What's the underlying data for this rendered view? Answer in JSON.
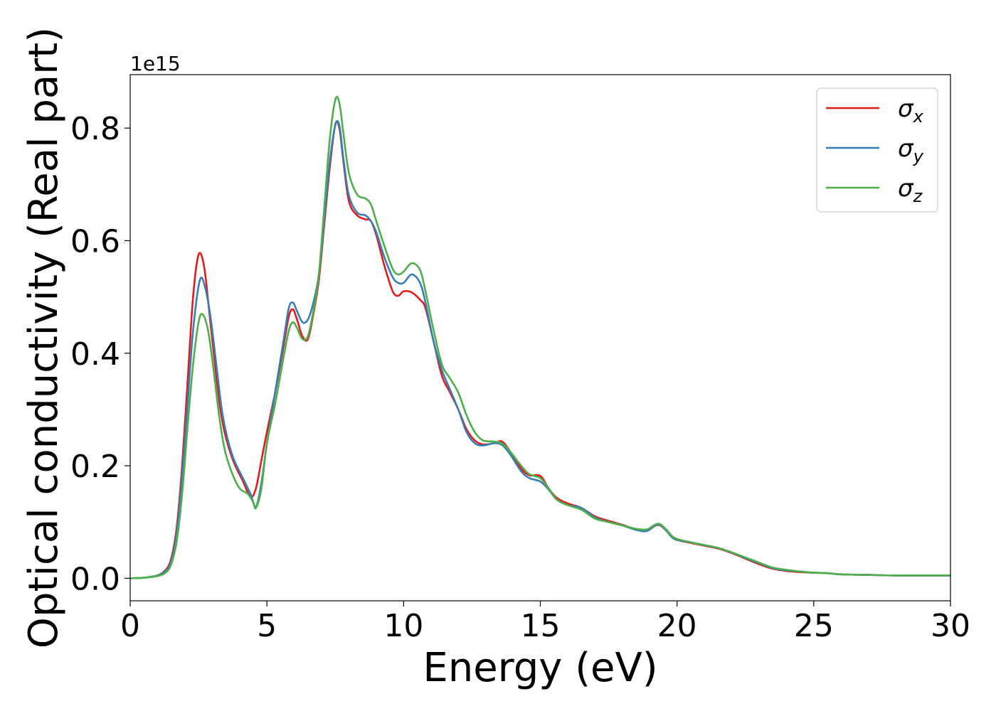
{
  "chart_data": {
    "type": "line",
    "title": "",
    "xlabel": "Energy (eV)",
    "ylabel": "Optical conductivity (Real part)",
    "y_offset_label": "1e15",
    "xlim": [
      0,
      30
    ],
    "ylim": [
      -0.04,
      0.895
    ],
    "xticks": [
      0,
      5,
      10,
      15,
      20,
      25,
      30
    ],
    "xtick_labels": [
      "0",
      "5",
      "10",
      "15",
      "20",
      "25",
      "30"
    ],
    "yticks": [
      0.0,
      0.2,
      0.4,
      0.6,
      0.8
    ],
    "ytick_labels": [
      "0.0",
      "0.2",
      "0.4",
      "0.6",
      "0.8"
    ],
    "grid": false,
    "legend_position": "top-right",
    "series": [
      {
        "name": "σx",
        "symbol": "σ",
        "subscript": "x",
        "color": "#e41a1c",
        "points": [
          [
            0,
            0
          ],
          [
            0.5,
            0.001
          ],
          [
            1.0,
            0.005
          ],
          [
            1.3,
            0.015
          ],
          [
            1.5,
            0.035
          ],
          [
            1.7,
            0.09
          ],
          [
            1.9,
            0.2
          ],
          [
            2.1,
            0.35
          ],
          [
            2.3,
            0.5
          ],
          [
            2.5,
            0.575
          ],
          [
            2.7,
            0.555
          ],
          [
            2.9,
            0.47
          ],
          [
            3.1,
            0.38
          ],
          [
            3.3,
            0.3
          ],
          [
            3.5,
            0.25
          ],
          [
            3.8,
            0.205
          ],
          [
            4.1,
            0.175
          ],
          [
            4.4,
            0.145
          ],
          [
            4.6,
            0.16
          ],
          [
            4.8,
            0.21
          ],
          [
            5.0,
            0.26
          ],
          [
            5.3,
            0.33
          ],
          [
            5.6,
            0.41
          ],
          [
            5.8,
            0.465
          ],
          [
            5.95,
            0.478
          ],
          [
            6.1,
            0.46
          ],
          [
            6.3,
            0.43
          ],
          [
            6.5,
            0.425
          ],
          [
            6.7,
            0.47
          ],
          [
            6.9,
            0.53
          ],
          [
            7.1,
            0.63
          ],
          [
            7.3,
            0.73
          ],
          [
            7.5,
            0.806
          ],
          [
            7.65,
            0.8
          ],
          [
            7.8,
            0.74
          ],
          [
            8.0,
            0.67
          ],
          [
            8.3,
            0.645
          ],
          [
            8.6,
            0.638
          ],
          [
            8.8,
            0.635
          ],
          [
            9.0,
            0.61
          ],
          [
            9.3,
            0.555
          ],
          [
            9.6,
            0.51
          ],
          [
            9.8,
            0.502
          ],
          [
            10.0,
            0.51
          ],
          [
            10.3,
            0.508
          ],
          [
            10.6,
            0.495
          ],
          [
            10.8,
            0.48
          ],
          [
            11.1,
            0.42
          ],
          [
            11.4,
            0.36
          ],
          [
            11.7,
            0.33
          ],
          [
            12.0,
            0.3
          ],
          [
            12.3,
            0.265
          ],
          [
            12.6,
            0.245
          ],
          [
            12.9,
            0.238
          ],
          [
            13.3,
            0.24
          ],
          [
            13.6,
            0.243
          ],
          [
            13.9,
            0.225
          ],
          [
            14.3,
            0.195
          ],
          [
            14.6,
            0.183
          ],
          [
            15.0,
            0.182
          ],
          [
            15.3,
            0.16
          ],
          [
            15.6,
            0.143
          ],
          [
            16.0,
            0.133
          ],
          [
            16.5,
            0.125
          ],
          [
            17.0,
            0.11
          ],
          [
            17.5,
            0.102
          ],
          [
            18.0,
            0.095
          ],
          [
            18.5,
            0.087
          ],
          [
            18.9,
            0.085
          ],
          [
            19.3,
            0.095
          ],
          [
            19.6,
            0.085
          ],
          [
            19.9,
            0.07
          ],
          [
            20.5,
            0.063
          ],
          [
            21.0,
            0.058
          ],
          [
            21.5,
            0.053
          ],
          [
            22.0,
            0.045
          ],
          [
            22.5,
            0.035
          ],
          [
            23.0,
            0.025
          ],
          [
            23.5,
            0.017
          ],
          [
            24.0,
            0.013
          ],
          [
            24.5,
            0.011
          ],
          [
            25.0,
            0.01
          ],
          [
            25.5,
            0.009
          ],
          [
            26.0,
            0.007
          ],
          [
            27.0,
            0.006
          ],
          [
            28.0,
            0.005
          ],
          [
            29.0,
            0.005
          ],
          [
            30.0,
            0.005
          ]
        ]
      },
      {
        "name": "σy",
        "symbol": "σ",
        "subscript": "y",
        "color": "#377eb8",
        "points": [
          [
            0,
            0
          ],
          [
            0.5,
            0.001
          ],
          [
            1.0,
            0.005
          ],
          [
            1.3,
            0.013
          ],
          [
            1.5,
            0.03
          ],
          [
            1.7,
            0.08
          ],
          [
            1.9,
            0.18
          ],
          [
            2.1,
            0.31
          ],
          [
            2.3,
            0.44
          ],
          [
            2.55,
            0.53
          ],
          [
            2.75,
            0.515
          ],
          [
            2.95,
            0.46
          ],
          [
            3.15,
            0.38
          ],
          [
            3.35,
            0.3
          ],
          [
            3.55,
            0.25
          ],
          [
            3.8,
            0.21
          ],
          [
            4.1,
            0.18
          ],
          [
            4.4,
            0.15
          ],
          [
            4.6,
            0.127
          ],
          [
            4.8,
            0.17
          ],
          [
            5.0,
            0.24
          ],
          [
            5.3,
            0.33
          ],
          [
            5.6,
            0.42
          ],
          [
            5.8,
            0.48
          ],
          [
            5.95,
            0.49
          ],
          [
            6.1,
            0.475
          ],
          [
            6.3,
            0.455
          ],
          [
            6.5,
            0.46
          ],
          [
            6.7,
            0.49
          ],
          [
            6.9,
            0.54
          ],
          [
            7.1,
            0.64
          ],
          [
            7.3,
            0.74
          ],
          [
            7.5,
            0.805
          ],
          [
            7.65,
            0.805
          ],
          [
            7.8,
            0.745
          ],
          [
            8.0,
            0.68
          ],
          [
            8.3,
            0.65
          ],
          [
            8.6,
            0.645
          ],
          [
            8.8,
            0.635
          ],
          [
            9.0,
            0.615
          ],
          [
            9.3,
            0.57
          ],
          [
            9.6,
            0.535
          ],
          [
            9.8,
            0.525
          ],
          [
            10.0,
            0.525
          ],
          [
            10.3,
            0.54
          ],
          [
            10.6,
            0.525
          ],
          [
            10.8,
            0.49
          ],
          [
            11.1,
            0.42
          ],
          [
            11.4,
            0.37
          ],
          [
            11.7,
            0.335
          ],
          [
            12.0,
            0.3
          ],
          [
            12.3,
            0.26
          ],
          [
            12.6,
            0.24
          ],
          [
            12.9,
            0.236
          ],
          [
            13.3,
            0.24
          ],
          [
            13.6,
            0.237
          ],
          [
            13.9,
            0.22
          ],
          [
            14.3,
            0.19
          ],
          [
            14.6,
            0.178
          ],
          [
            15.0,
            0.172
          ],
          [
            15.3,
            0.158
          ],
          [
            15.6,
            0.14
          ],
          [
            16.0,
            0.13
          ],
          [
            16.5,
            0.125
          ],
          [
            17.0,
            0.108
          ],
          [
            17.5,
            0.1
          ],
          [
            18.0,
            0.094
          ],
          [
            18.5,
            0.086
          ],
          [
            18.9,
            0.084
          ],
          [
            19.3,
            0.096
          ],
          [
            19.6,
            0.085
          ],
          [
            19.9,
            0.07
          ],
          [
            20.5,
            0.064
          ],
          [
            21.0,
            0.059
          ],
          [
            21.5,
            0.054
          ],
          [
            22.0,
            0.046
          ],
          [
            22.5,
            0.036
          ],
          [
            23.0,
            0.027
          ],
          [
            23.5,
            0.018
          ],
          [
            24.0,
            0.014
          ],
          [
            24.5,
            0.012
          ],
          [
            25.0,
            0.01
          ],
          [
            25.5,
            0.009
          ],
          [
            26.0,
            0.007
          ],
          [
            27.0,
            0.006
          ],
          [
            28.0,
            0.005
          ],
          [
            29.0,
            0.005
          ],
          [
            30.0,
            0.005
          ]
        ]
      },
      {
        "name": "σz",
        "symbol": "σ",
        "subscript": "z",
        "color": "#4daf4a",
        "points": [
          [
            0,
            0
          ],
          [
            0.5,
            0.001
          ],
          [
            1.0,
            0.004
          ],
          [
            1.3,
            0.01
          ],
          [
            1.5,
            0.025
          ],
          [
            1.7,
            0.065
          ],
          [
            1.9,
            0.15
          ],
          [
            2.1,
            0.27
          ],
          [
            2.3,
            0.38
          ],
          [
            2.5,
            0.455
          ],
          [
            2.65,
            0.469
          ],
          [
            2.85,
            0.44
          ],
          [
            3.05,
            0.37
          ],
          [
            3.25,
            0.29
          ],
          [
            3.45,
            0.23
          ],
          [
            3.7,
            0.19
          ],
          [
            4.0,
            0.16
          ],
          [
            4.3,
            0.15
          ],
          [
            4.5,
            0.135
          ],
          [
            4.6,
            0.125
          ],
          [
            4.8,
            0.16
          ],
          [
            5.0,
            0.24
          ],
          [
            5.3,
            0.31
          ],
          [
            5.6,
            0.39
          ],
          [
            5.8,
            0.44
          ],
          [
            5.95,
            0.455
          ],
          [
            6.1,
            0.445
          ],
          [
            6.3,
            0.425
          ],
          [
            6.5,
            0.43
          ],
          [
            6.7,
            0.475
          ],
          [
            6.9,
            0.54
          ],
          [
            7.1,
            0.66
          ],
          [
            7.3,
            0.78
          ],
          [
            7.5,
            0.85
          ],
          [
            7.65,
            0.845
          ],
          [
            7.8,
            0.79
          ],
          [
            8.0,
            0.72
          ],
          [
            8.3,
            0.682
          ],
          [
            8.6,
            0.675
          ],
          [
            8.8,
            0.665
          ],
          [
            9.0,
            0.635
          ],
          [
            9.3,
            0.59
          ],
          [
            9.6,
            0.55
          ],
          [
            9.8,
            0.54
          ],
          [
            10.0,
            0.545
          ],
          [
            10.3,
            0.56
          ],
          [
            10.6,
            0.548
          ],
          [
            10.8,
            0.51
          ],
          [
            11.1,
            0.44
          ],
          [
            11.4,
            0.38
          ],
          [
            11.7,
            0.355
          ],
          [
            12.0,
            0.33
          ],
          [
            12.3,
            0.29
          ],
          [
            12.6,
            0.26
          ],
          [
            12.9,
            0.245
          ],
          [
            13.3,
            0.243
          ],
          [
            13.6,
            0.24
          ],
          [
            13.9,
            0.225
          ],
          [
            14.3,
            0.2
          ],
          [
            14.6,
            0.185
          ],
          [
            15.0,
            0.178
          ],
          [
            15.3,
            0.16
          ],
          [
            15.6,
            0.14
          ],
          [
            16.0,
            0.13
          ],
          [
            16.5,
            0.122
          ],
          [
            17.0,
            0.106
          ],
          [
            17.5,
            0.1
          ],
          [
            18.0,
            0.094
          ],
          [
            18.5,
            0.088
          ],
          [
            18.9,
            0.087
          ],
          [
            19.3,
            0.097
          ],
          [
            19.6,
            0.087
          ],
          [
            19.9,
            0.072
          ],
          [
            20.5,
            0.064
          ],
          [
            21.0,
            0.059
          ],
          [
            21.5,
            0.054
          ],
          [
            22.0,
            0.046
          ],
          [
            22.5,
            0.037
          ],
          [
            23.0,
            0.028
          ],
          [
            23.5,
            0.019
          ],
          [
            24.0,
            0.015
          ],
          [
            24.5,
            0.012
          ],
          [
            25.0,
            0.01
          ],
          [
            25.5,
            0.009
          ],
          [
            26.0,
            0.007
          ],
          [
            27.0,
            0.006
          ],
          [
            28.0,
            0.005
          ],
          [
            29.0,
            0.005
          ],
          [
            30.0,
            0.005
          ]
        ]
      }
    ]
  }
}
